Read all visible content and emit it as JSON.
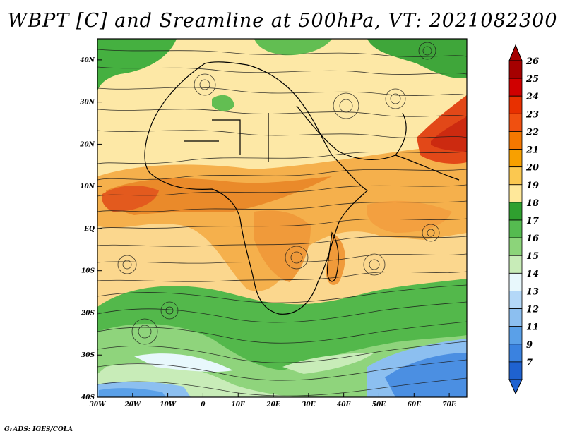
{
  "title": "WBPT [C] and Sreamline at 500hPa, VT: 2021082300",
  "credit": "GrADS: IGES/COLA",
  "map": {
    "lon_range": [
      -30,
      75
    ],
    "lat_range": [
      -40,
      45
    ],
    "lon_ticks": [
      {
        "value": -30,
        "label": "30W"
      },
      {
        "value": -20,
        "label": "20W"
      },
      {
        "value": -10,
        "label": "10W"
      },
      {
        "value": 0,
        "label": "0"
      },
      {
        "value": 10,
        "label": "10E"
      },
      {
        "value": 20,
        "label": "20E"
      },
      {
        "value": 30,
        "label": "30E"
      },
      {
        "value": 40,
        "label": "40E"
      },
      {
        "value": 50,
        "label": "50E"
      },
      {
        "value": 60,
        "label": "60E"
      },
      {
        "value": 70,
        "label": "70E"
      }
    ],
    "lat_ticks": [
      {
        "value": 40,
        "label": "40N"
      },
      {
        "value": 30,
        "label": "30N"
      },
      {
        "value": 20,
        "label": "20N"
      },
      {
        "value": 10,
        "label": "10N"
      },
      {
        "value": 0,
        "label": "EQ"
      },
      {
        "value": -10,
        "label": "10S"
      },
      {
        "value": -20,
        "label": "20S"
      },
      {
        "value": -30,
        "label": "30S"
      },
      {
        "value": -40,
        "label": "40S"
      }
    ]
  },
  "colorbar": {
    "labels": [
      "26",
      "25",
      "24",
      "23",
      "22",
      "21",
      "20",
      "19",
      "18",
      "17",
      "16",
      "15",
      "14",
      "13",
      "12",
      "11",
      "9",
      "7"
    ],
    "colors": [
      "#a50000",
      "#d00000",
      "#e83000",
      "#f05010",
      "#f57800",
      "#f8a000",
      "#fbc850",
      "#ffe89a",
      "#2fa02f",
      "#55bb50",
      "#8cd47a",
      "#c8ecb8",
      "#e8f8fc",
      "#b4d8f8",
      "#8cbff0",
      "#5aa0e8",
      "#3a82e0",
      "#1f62d0"
    ]
  }
}
